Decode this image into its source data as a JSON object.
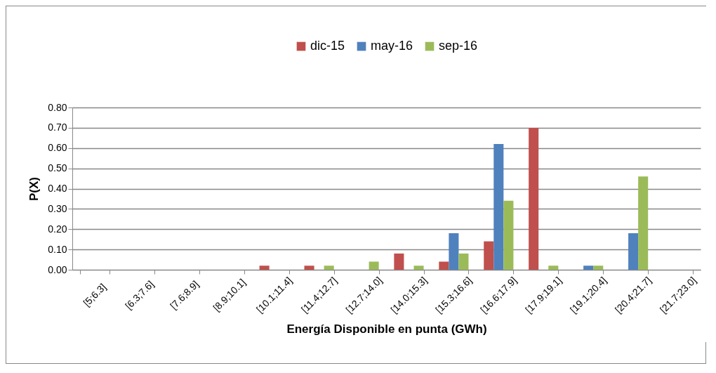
{
  "chart_data": {
    "type": "bar",
    "xlabel": "Energía Disponible en punta (GWh)",
    "ylabel": "P(X)",
    "categories": [
      "[5;6.3]",
      "[6.3;7.6]",
      "[7.6;8.9]",
      "[8.9;10.1]",
      "[10.1;11.4]",
      "[11.4;12.7]",
      "[12.7;14.0]",
      "[14.0;15.3]",
      "[15.3;16.6]",
      "[16.6;17.9]",
      "[17.9;19.1]",
      "[19.1;20.4]",
      "[20.4;21.7]",
      "[21.7;23.0]"
    ],
    "series": [
      {
        "name": "dic-15",
        "color": "#c0504d",
        "values": [
          0,
          0,
          0,
          0,
          0.02,
          0.02,
          0,
          0.08,
          0.04,
          0.14,
          0.7,
          0,
          0,
          0
        ]
      },
      {
        "name": "may-16",
        "color": "#4f81bd",
        "values": [
          0,
          0,
          0,
          0,
          0,
          0,
          0,
          0,
          0.18,
          0.62,
          0,
          0.02,
          0.18,
          0
        ]
      },
      {
        "name": "sep-16",
        "color": "#9bbb59",
        "values": [
          0,
          0,
          0,
          0,
          0,
          0.02,
          0.04,
          0.02,
          0.08,
          0.34,
          0.02,
          0.02,
          0.46,
          0
        ]
      }
    ],
    "ylim": [
      0,
      0.8
    ],
    "yticks": [
      {
        "value": 0,
        "label": "0.00"
      },
      {
        "value": 0.1,
        "label": "0.10"
      },
      {
        "value": 0.2,
        "label": "0.20"
      },
      {
        "value": 0.3,
        "label": "0.30"
      },
      {
        "value": 0.4,
        "label": "0.40"
      },
      {
        "value": 0.5,
        "label": "0.50"
      },
      {
        "value": 0.6,
        "label": "0.60"
      },
      {
        "value": 0.7,
        "label": "0.70"
      },
      {
        "value": 0.8,
        "label": "0.80"
      }
    ],
    "grid": "y",
    "legend": "top"
  }
}
